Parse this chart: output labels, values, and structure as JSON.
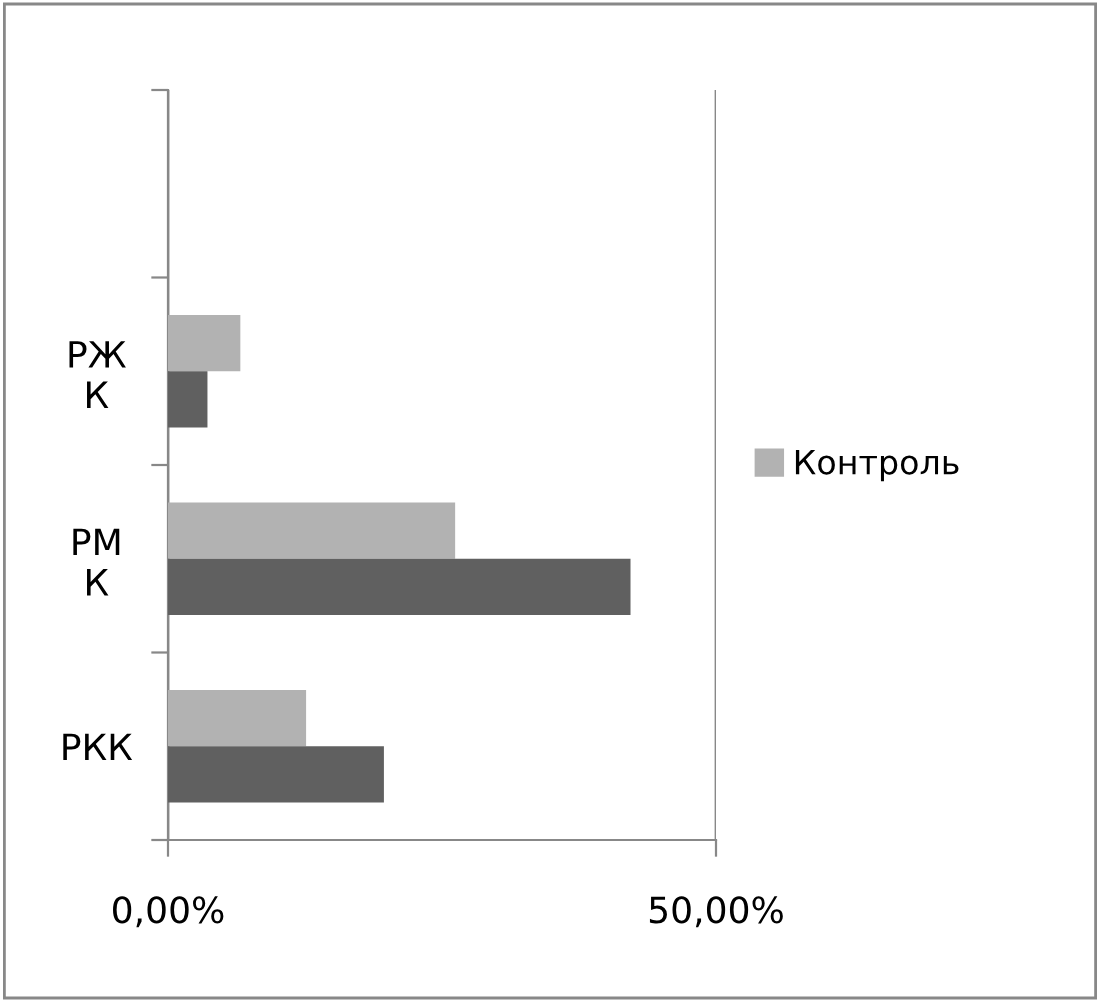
{
  "chart_data": {
    "type": "bar",
    "orientation": "horizontal",
    "categories": [
      null,
      "РЖ\nК",
      "РМ\nК",
      "РКК"
    ],
    "series": [
      {
        "name": "Контроль",
        "color": "#b2b2b2",
        "values": [
          null,
          6.6,
          26.2,
          12.6
        ]
      },
      {
        "color": "#606060",
        "values": [
          null,
          3.6,
          42.2,
          19.7
        ]
      }
    ],
    "xlim": [
      0,
      50
    ],
    "xticks": [
      {
        "value": 0,
        "label": "0,00%"
      },
      {
        "value": 50,
        "label": "50,00%"
      }
    ],
    "grid": "x",
    "legend": "right"
  }
}
